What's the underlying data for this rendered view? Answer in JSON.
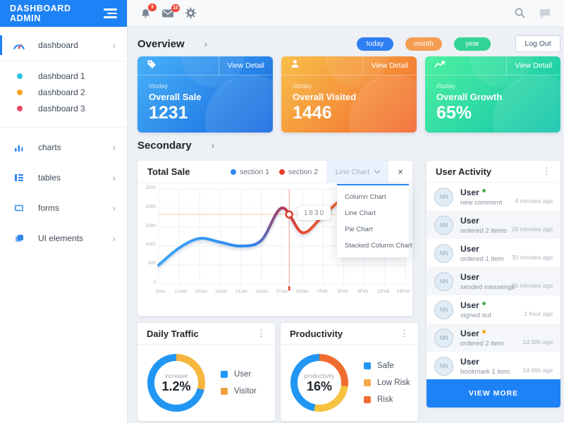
{
  "app": {
    "title": "DASHBOARD ADMIN"
  },
  "topbar": {
    "bell_badge": "3",
    "mail_badge": "15"
  },
  "sidebar": {
    "items": [
      {
        "label": "dashboard"
      },
      {
        "label": "dashboard 1",
        "dot": "#2ec4e6"
      },
      {
        "label": "dashboard 2",
        "dot": "#f5a623"
      },
      {
        "label": "dashboard 3",
        "dot": "#ef4565"
      },
      {
        "label": "charts"
      },
      {
        "label": "tables"
      },
      {
        "label": "forms"
      },
      {
        "label": "UI elements"
      }
    ]
  },
  "overview": {
    "title": "Overview",
    "filters": [
      {
        "label": "today",
        "color": "#2f7ef3"
      },
      {
        "label": "month",
        "color": "#f59d52"
      },
      {
        "label": "year",
        "color": "#33d398"
      }
    ],
    "logout_label": "Log Out",
    "cards": [
      {
        "period": "//today",
        "label": "Overall Sale",
        "value": "1231",
        "view_detail": "View Detail",
        "gradient": [
          "#47b1f8",
          "#1567de"
        ]
      },
      {
        "period": "//today",
        "label": "Overall Visited",
        "value": "1446",
        "view_detail": "View Detail",
        "gradient": [
          "#f8c04b",
          "#f2672c"
        ]
      },
      {
        "period": "//today",
        "label": "Overall Growth",
        "value": "65%",
        "view_detail": "View Detail",
        "gradient": [
          "#4ef0a0",
          "#0fc3ab"
        ]
      }
    ]
  },
  "secondary": {
    "title": "Secondary"
  },
  "total_sale": {
    "title": "Total Sale",
    "legend": [
      {
        "label": "section 1",
        "color": "#2e86f0"
      },
      {
        "label": "section 2",
        "color": "#e8402a"
      }
    ],
    "select": {
      "value": "Line Chart",
      "options": [
        "Column Chart",
        "Line Chart",
        "Pie Chart",
        "Stacked Column Chart"
      ]
    }
  },
  "user_activity": {
    "title": "User Activity",
    "view_more_label": "VIEW MORE",
    "items": [
      {
        "avatar": "NN",
        "name": "User",
        "dot": "#4caf50",
        "action": "new comment",
        "time": "4 minutes ago"
      },
      {
        "avatar": "NN",
        "name": "User",
        "action": "ordered 2 items",
        "time": "20 minutes ago"
      },
      {
        "avatar": "NN",
        "name": "User",
        "action": "ordered 1 item",
        "time": "30 minutes ago"
      },
      {
        "avatar": "NN",
        "name": "User",
        "action": "sended messenge",
        "time": "55 minutes ago"
      },
      {
        "avatar": "NN",
        "name": "User",
        "dot": "#4caf50",
        "action": "signed out",
        "time": "1 hour ago"
      },
      {
        "avatar": "NN",
        "name": "User",
        "dot": "#f5a623",
        "action": "ordered 2 item",
        "time": "1d 30h ago"
      },
      {
        "avatar": "NN",
        "name": "User",
        "action": "bookmark 1 item",
        "time": "1d 45h ago"
      }
    ]
  },
  "chart_data": [
    {
      "type": "line",
      "title": "Total Sale",
      "x": [
        "9Jan",
        "12Jan",
        "15Jan",
        "18Jan",
        "21Jan",
        "24Jan",
        "27Jan",
        "30Jan",
        "2Feb",
        "5Feb",
        "8Feb",
        "11Feb",
        "14Feb"
      ],
      "series": [
        {
          "name": "total sale",
          "values": [
            500,
            950,
            1200,
            1100,
            1000,
            1150,
            2000,
            1350,
            1800,
            2250,
            2300,
            2350,
            2400
          ]
        }
      ],
      "ylim": [
        0,
        2500
      ],
      "yticks": [
        "2500",
        "2000",
        "1500",
        "1000",
        "500",
        "0"
      ],
      "highlight": {
        "value": 1830,
        "index": 6.35
      },
      "gradient": [
        "#3fa4f6",
        "#2e86f0",
        "#b03a56",
        "#e8472c",
        "#f09a38"
      ],
      "grid": "on"
    },
    {
      "type": "donut",
      "title": "Daily Traffic",
      "center_label": "increase",
      "center_value": "1.2%",
      "segments": [
        {
          "label": "Visitor",
          "value": 29,
          "color": "#f5b53f"
        },
        {
          "label": "User",
          "value": 71,
          "color": "#2196f3"
        }
      ],
      "legend": [
        {
          "label": "User",
          "color": "#2196f3"
        },
        {
          "label": "Visitor",
          "color": "#f0a13e"
        }
      ]
    },
    {
      "type": "donut",
      "title": "Productivity",
      "center_label": "productivity",
      "center_value": "16%",
      "segments": [
        {
          "label": "Risk",
          "value": 27,
          "color": "#ef6c30"
        },
        {
          "label": "Low Risk",
          "value": 26,
          "color": "#f5c33f"
        },
        {
          "label": "Safe",
          "value": 47,
          "color": "#2196f3"
        }
      ],
      "legend": [
        {
          "label": "Safe",
          "color": "#2196f3"
        },
        {
          "label": "Low Risk",
          "color": "#f5a94b"
        },
        {
          "label": "Risk",
          "color": "#ef6c30"
        }
      ]
    }
  ]
}
